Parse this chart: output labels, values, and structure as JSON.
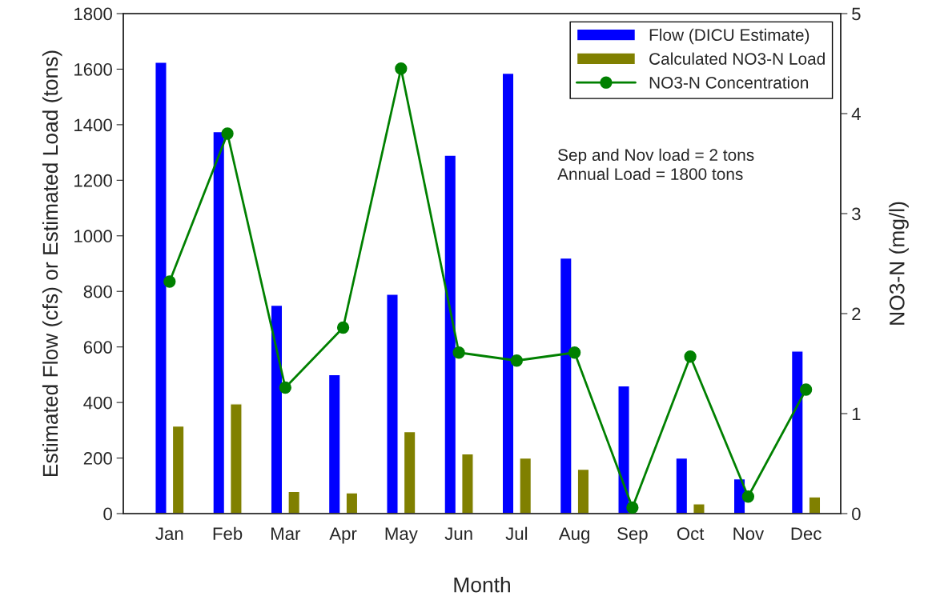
{
  "chart_data": {
    "type": "bar",
    "xlabel": "Month",
    "ylabel": "Estimated Flow (cfs) or Estimated Load (tons)",
    "y2label": "NO3-N (mg/l)",
    "categories": [
      "Jan",
      "Feb",
      "Mar",
      "Apr",
      "May",
      "Jun",
      "Jul",
      "Aug",
      "Sep",
      "Oct",
      "Nov",
      "Dec"
    ],
    "series": [
      {
        "name": "Flow (DICU Estimate)",
        "color": "#0000ff",
        "values": [
          1625,
          1375,
          750,
          500,
          790,
          1290,
          1585,
          920,
          460,
          200,
          125,
          585
        ]
      },
      {
        "name": "Calculated NO3-N Load",
        "color": "#808000",
        "values": [
          315,
          395,
          80,
          75,
          295,
          215,
          200,
          160,
          2,
          35,
          2,
          60
        ]
      },
      {
        "name": "NO3-N Concentration",
        "type": "line",
        "axis": "y2",
        "color": "#008000",
        "marker": "circle",
        "line_style": "solid",
        "values": [
          2.32,
          3.8,
          1.26,
          1.86,
          4.45,
          1.61,
          1.53,
          1.61,
          0.06,
          1.57,
          0.17,
          1.24
        ]
      }
    ],
    "ylim": [
      0,
      1800
    ],
    "yticks": [
      0,
      200,
      400,
      600,
      800,
      1000,
      1200,
      1400,
      1600,
      1800
    ],
    "y2lim": [
      0,
      5
    ],
    "y2ticks": [
      0,
      1,
      2,
      3,
      4,
      5
    ],
    "annotations": [
      "Sep and Nov load = 2 tons\nAnnual Load = 1800 tons"
    ],
    "legend": "top right",
    "grid": false
  }
}
